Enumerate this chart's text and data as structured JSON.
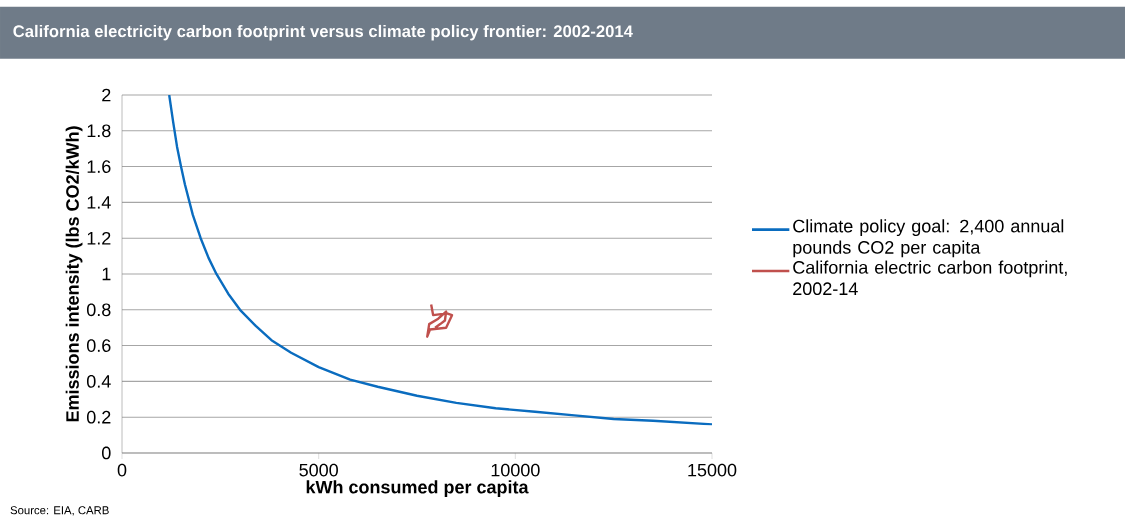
{
  "chart_data": {
    "type": "line",
    "title": "California electricity carbon footprint  versus climate policy frontier: 2002-2014",
    "xlabel": "kWh consumed per capita",
    "ylabel": "Emissions intensity (lbs CO2/kWh)",
    "annotations": [
      "Source: EIA, CARB"
    ],
    "xlim": [
      0,
      15000
    ],
    "ylim": [
      0,
      2
    ],
    "xticks": [
      0,
      5000,
      10000,
      15000
    ],
    "yticks": [
      0,
      0.2,
      0.4,
      0.6,
      0.8,
      1,
      1.2,
      1.4,
      1.6,
      1.8,
      2
    ],
    "grid": "y",
    "legend": "right",
    "marker": "none",
    "line_style": "solid",
    "series": [
      {
        "name": "Climate policy goal: 2,400 annual pounds CO2 per capita",
        "color": "#0a6cbf",
        "x": [
          1200,
          1300,
          1400,
          1500,
          1600,
          1800,
          2000,
          2200,
          2400,
          2700,
          3000,
          3400,
          3800,
          4300,
          5000,
          5800,
          6500,
          7500,
          8500,
          9500,
          10500,
          11500,
          12500,
          13500,
          15000
        ],
        "values": [
          2,
          1.85,
          1.71,
          1.6,
          1.5,
          1.33,
          1.2,
          1.09,
          1,
          0.89,
          0.8,
          0.71,
          0.63,
          0.56,
          0.48,
          0.41,
          0.37,
          0.32,
          0.28,
          0.25,
          0.23,
          0.21,
          0.19,
          0.18,
          0.16
        ]
      },
      {
        "name": "California electric carbon footprint, 2002-14",
        "color": "#c0504d",
        "x": [
          7860,
          7910,
          8260,
          8390,
          8240,
          7830,
          7760,
          7810,
          8040,
          8240,
          8210,
          8090,
          7960
        ],
        "values": [
          0.83,
          0.77,
          0.78,
          0.77,
          0.7,
          0.69,
          0.65,
          0.72,
          0.75,
          0.79,
          0.74,
          0.72,
          0.7
        ]
      }
    ]
  }
}
